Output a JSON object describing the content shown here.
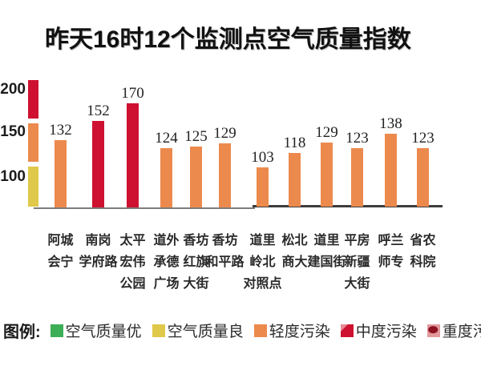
{
  "title": "昨天16时12个监测点空气质量指数",
  "y_axis": {
    "ticks": [
      "200",
      "150",
      "100"
    ]
  },
  "legend": {
    "label": "图例:",
    "items": [
      {
        "id": "excellent",
        "label": "空气质量优",
        "color": "#3cae55"
      },
      {
        "id": "good",
        "label": "空气质量良",
        "color": "#e0c84a"
      },
      {
        "id": "light",
        "label": "轻度污染",
        "color": "#ec8a4d"
      },
      {
        "id": "moderate",
        "label": "中度污染",
        "color": "#ce1130"
      },
      {
        "id": "severe",
        "label": "重度污染",
        "color": "#8e1422"
      }
    ]
  },
  "chart_data": {
    "type": "bar",
    "title": "昨天16时12个监测点空气质量指数",
    "categories": [
      "阿城会宁",
      "南岗学府路",
      "太平宏伟公园",
      "道外承德广场",
      "香坊红旗大街",
      "香坊和平路",
      "道里岭北对照点",
      "松北商大",
      "道里建国街",
      "平房新疆大街",
      "呼兰师专",
      "省农科院"
    ],
    "label_lines": [
      [
        "阿城",
        "会宁"
      ],
      [
        "南岗",
        "学府路"
      ],
      [
        "太平",
        "宏伟",
        "公园"
      ],
      [
        "道外",
        "承德",
        "广场"
      ],
      [
        "香坊",
        "红旗",
        "大街"
      ],
      [
        "香坊",
        "和平路"
      ],
      [
        "道里",
        "岭北",
        "对照点"
      ],
      [
        "松北",
        "商大"
      ],
      [
        "道里",
        "建国街"
      ],
      [
        "平房",
        "新疆",
        "大街"
      ],
      [
        "呼兰",
        "师专"
      ],
      [
        "省农",
        "科院"
      ]
    ],
    "values": [
      132,
      152,
      170,
      124,
      125,
      129,
      103,
      118,
      129,
      123,
      138,
      123
    ],
    "levels": [
      "light",
      "moderate",
      "moderate",
      "light",
      "light",
      "light",
      "light",
      "light",
      "light",
      "light",
      "light",
      "light"
    ],
    "level_colors": {
      "excellent": "#3cae55",
      "good": "#e0c84a",
      "light": "#ec8a4d",
      "moderate": "#ce1130",
      "severe": "#8e1422"
    },
    "yticks": [
      100,
      150,
      200
    ],
    "axis_strip_colors": [
      "#ce1130",
      "#ec8a4d",
      "#e0c84a"
    ],
    "grid": false,
    "legend_position": "bottom"
  }
}
